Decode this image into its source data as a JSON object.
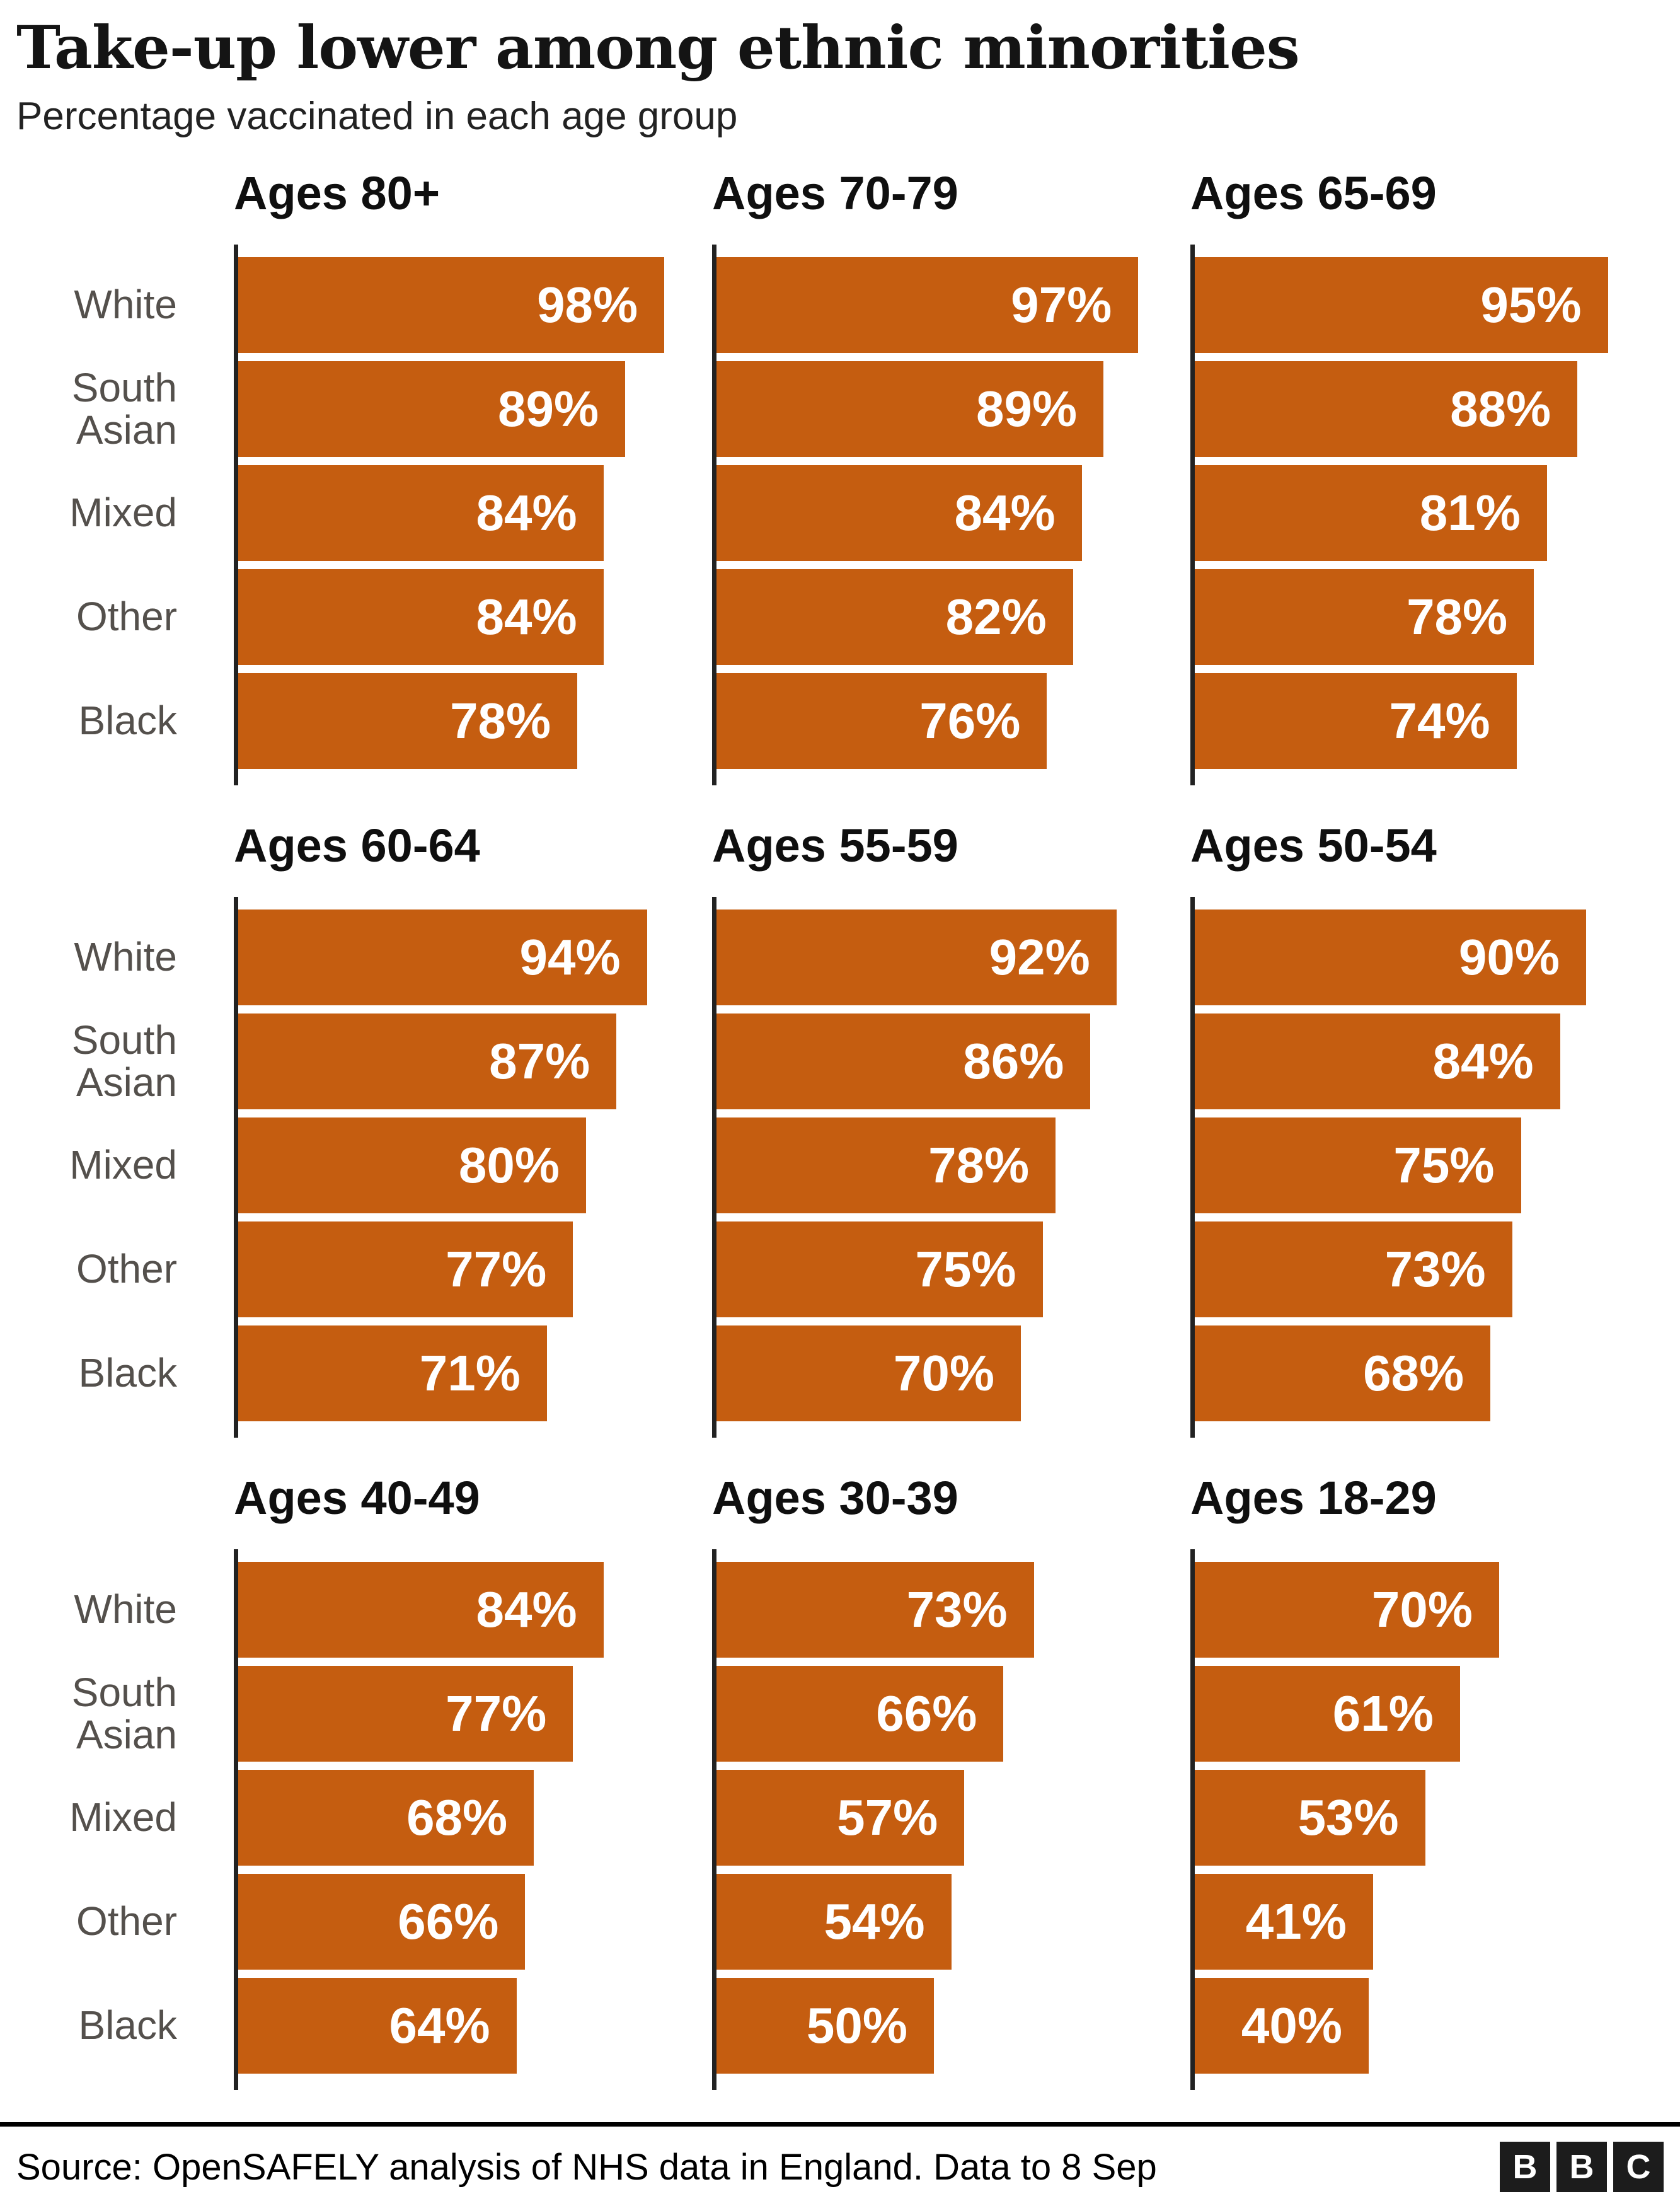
{
  "header": {
    "title": "Take-up lower among ethnic minorities",
    "subtitle": "Percentage vaccinated in each age group"
  },
  "chart_data": {
    "type": "bar",
    "orientation": "horizontal",
    "unit": "%",
    "xlim": [
      0,
      100
    ],
    "grid": false,
    "value_labels": "inside-right",
    "categories": [
      "White",
      "South Asian",
      "Mixed",
      "Other",
      "Black"
    ],
    "panels": [
      {
        "title": "Ages 80+",
        "values": [
          98,
          89,
          84,
          84,
          78
        ]
      },
      {
        "title": "Ages 70-79",
        "values": [
          97,
          89,
          84,
          82,
          76
        ]
      },
      {
        "title": "Ages 65-69",
        "values": [
          95,
          88,
          81,
          78,
          74
        ]
      },
      {
        "title": "Ages 60-64",
        "values": [
          94,
          87,
          80,
          77,
          71
        ]
      },
      {
        "title": "Ages 55-59",
        "values": [
          92,
          86,
          78,
          75,
          70
        ]
      },
      {
        "title": "Ages 50-54",
        "values": [
          90,
          84,
          75,
          73,
          68
        ]
      },
      {
        "title": "Ages 40-49",
        "values": [
          84,
          77,
          68,
          66,
          64
        ]
      },
      {
        "title": "Ages 30-39",
        "values": [
          73,
          66,
          57,
          54,
          50
        ]
      },
      {
        "title": "Ages 18-29",
        "values": [
          70,
          61,
          53,
          41,
          40
        ]
      }
    ]
  },
  "colors": {
    "bar": "#c55d10",
    "axis": "#222222",
    "category_label": "#54504c",
    "title": "#141414",
    "subtitle": "#222222",
    "source": "#000000",
    "logo_bg": "#1c1c1c"
  },
  "footer": {
    "source": "Source: OpenSAFELY analysis of NHS data in England. Data to 8 Sep",
    "logo_letters": [
      "B",
      "B",
      "C"
    ]
  }
}
